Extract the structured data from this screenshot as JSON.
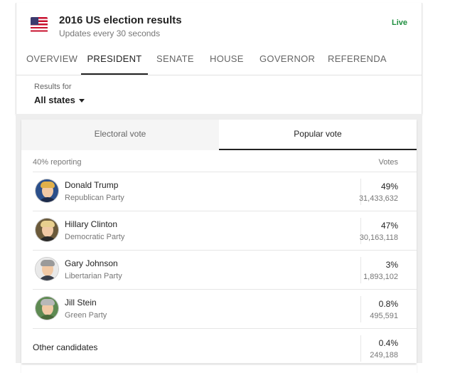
{
  "header": {
    "title": "2016 US election results",
    "subtitle": "Updates every 30 seconds",
    "live_label": "Live",
    "flag_icon": "us-flag-icon"
  },
  "tabs": [
    {
      "label": "OVERVIEW",
      "active": false
    },
    {
      "label": "PRESIDENT",
      "active": true
    },
    {
      "label": "SENATE",
      "active": false
    },
    {
      "label": "HOUSE",
      "active": false
    },
    {
      "label": "GOVERNOR",
      "active": false
    },
    {
      "label": "REFERENDA",
      "active": false
    }
  ],
  "filter": {
    "label": "Results for",
    "value": "All states"
  },
  "vote_tabs": [
    {
      "label": "Electoral vote",
      "active": false
    },
    {
      "label": "Popular vote",
      "active": true
    }
  ],
  "table": {
    "reporting": "40% reporting",
    "votes_header": "Votes",
    "candidates": [
      {
        "name": "Donald Trump",
        "party": "Republican Party",
        "percent": "49%",
        "votes": "31,433,632"
      },
      {
        "name": "Hillary Clinton",
        "party": "Democratic Party",
        "percent": "47%",
        "votes": "30,163,118"
      },
      {
        "name": "Gary Johnson",
        "party": "Libertarian Party",
        "percent": "3%",
        "votes": "1,893,102"
      },
      {
        "name": "Jill Stein",
        "party": "Green Party",
        "percent": "0.8%",
        "votes": "495,591"
      }
    ],
    "other": {
      "name": "Other candidates",
      "percent": "0.4%",
      "votes": "249,188"
    }
  },
  "colors": {
    "live": "#1e8e3e",
    "republican": "#c62828",
    "democrat": "#1565c0"
  }
}
